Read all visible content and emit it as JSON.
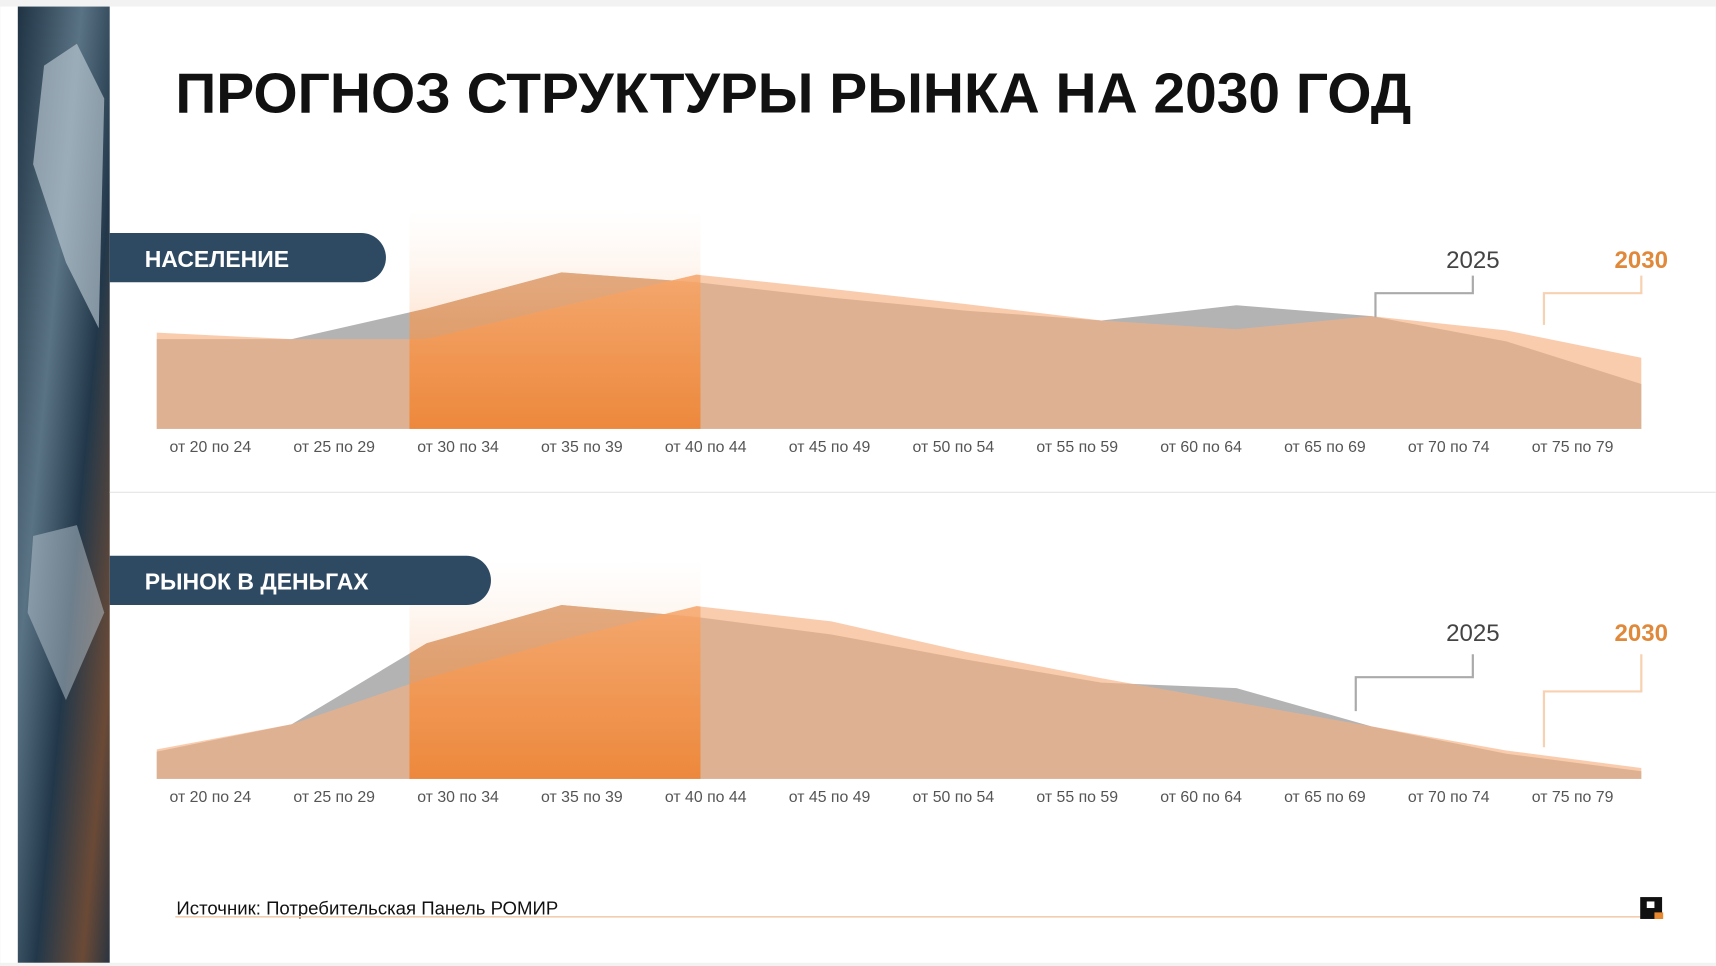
{
  "title": "ПРОГНОЗ СТРУКТУРЫ РЫНКА НА 2030 ГОД",
  "source": "Источник: Потребительская Панель РОМИР",
  "chart_data": [
    {
      "type": "area",
      "title": "НАСЕЛЕНИЕ",
      "categories": [
        "от 20 по 24",
        "от 25 по 29",
        "от 30 по 34",
        "от 35 по 39",
        "от 40 по 44",
        "от 45 по 49",
        "от 50 по 54",
        "от 55 по 59",
        "от 60 по 64",
        "от 65 по 69",
        "от 70 по 74",
        "от 75 по 79"
      ],
      "series": [
        {
          "name": "2025",
          "color": "#9a9a9a",
          "values": [
            82,
            82,
            110,
            143,
            134,
            120,
            108,
            99,
            113,
            103,
            80,
            41
          ]
        },
        {
          "name": "2030",
          "color": "#f7b183",
          "values": [
            88,
            82,
            82,
            112,
            141,
            128,
            114,
            99,
            91,
            103,
            90,
            65
          ]
        }
      ],
      "ylim": [
        0,
        200
      ]
    },
    {
      "type": "area",
      "title": "РЫНОК В ДЕНЬГАХ",
      "categories": [
        "от 20 по 24",
        "от 25 по 29",
        "от 30 по 34",
        "от 35 по 39",
        "от 40 по 44",
        "от 45 по 49",
        "от 50 по 54",
        "от 55 по 59",
        "от 60 по 64",
        "от 65 по 69",
        "от 70 по 74",
        "от 75 по 79"
      ],
      "series": [
        {
          "name": "2025",
          "color": "#9a9a9a",
          "values": [
            25,
            50,
            124,
            159,
            148,
            132,
            109,
            88,
            83,
            48,
            23,
            7
          ]
        },
        {
          "name": "2030",
          "color": "#f7b183",
          "values": [
            27,
            50,
            92,
            127,
            158,
            144,
            116,
            92,
            70,
            48,
            26,
            10
          ]
        }
      ],
      "ylim": [
        0,
        200
      ]
    }
  ]
}
